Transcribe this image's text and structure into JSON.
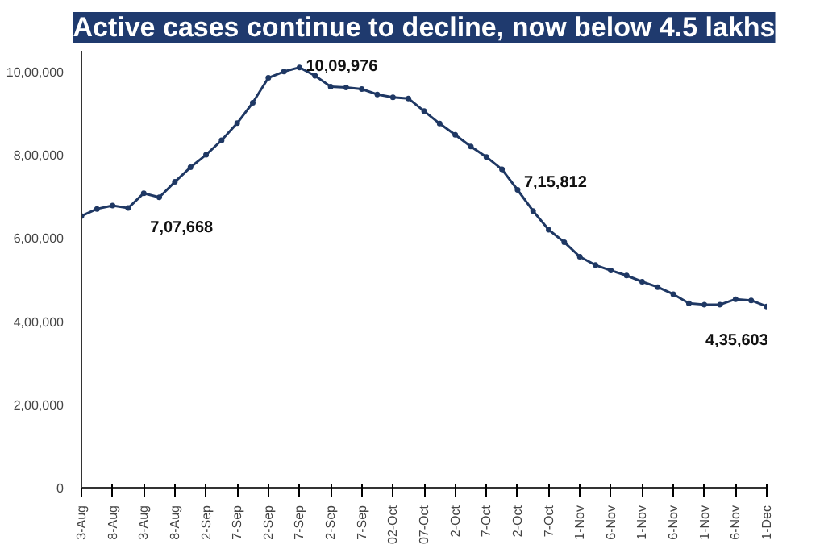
{
  "chart_data": {
    "type": "line",
    "title": "Active cases continue to decline, now below 4.5 lakhs",
    "categories": [
      "3-Aug",
      null,
      "8-Aug",
      null,
      "3-Aug",
      null,
      "8-Aug",
      null,
      "2-Sep",
      null,
      "7-Sep",
      null,
      "2-Sep",
      null,
      "7-Sep",
      null,
      "2-Sep",
      null,
      "7-Sep",
      null,
      "02-Oct",
      null,
      "07-Oct",
      null,
      "2-Oct",
      null,
      "7-Oct",
      null,
      "2-Oct",
      null,
      "7-Oct",
      null,
      "1-Nov",
      null,
      "6-Nov",
      null,
      "1-Nov",
      null,
      "6-Nov",
      null,
      "1-Nov",
      null,
      "6-Nov",
      null,
      "1-Dec"
    ],
    "series": [
      {
        "color": "#1f3864",
        "values": [
          653000,
          670000,
          678000,
          672000,
          707668,
          698000,
          735000,
          770000,
          800000,
          835000,
          876000,
          925000,
          985000,
          1000000,
          1009976,
          990000,
          964000,
          962000,
          958000,
          945000,
          938000,
          935000,
          905000,
          875000,
          848000,
          820000,
          795000,
          765000,
          715812,
          665000,
          620000,
          590000,
          555000,
          535000,
          522000,
          510000,
          495000,
          482000,
          465000,
          443000,
          440000,
          440000,
          453000,
          450000,
          435603
        ],
        "value_labels": [
          null,
          null,
          null,
          null,
          "7,07,668",
          null,
          null,
          null,
          null,
          null,
          null,
          null,
          null,
          null,
          "10,09,976",
          null,
          null,
          null,
          null,
          null,
          null,
          null,
          null,
          null,
          null,
          null,
          null,
          null,
          "7,15,812",
          null,
          null,
          null,
          null,
          null,
          null,
          null,
          null,
          null,
          null,
          null,
          null,
          null,
          null,
          null,
          "4,35,603"
        ]
      }
    ],
    "ylim": [
      0,
      1050000
    ],
    "yticks": [
      0,
      {
        "value": 200000,
        "label": "2,00,000"
      },
      {
        "value": 400000,
        "label": "4,00,000"
      },
      {
        "value": 600000,
        "label": "6,00,000"
      },
      {
        "value": 800000,
        "label": "8,00,000"
      },
      {
        "value": 1000000,
        "label": "10,00,000"
      }
    ],
    "marker": "circle",
    "line_style": "solid"
  }
}
